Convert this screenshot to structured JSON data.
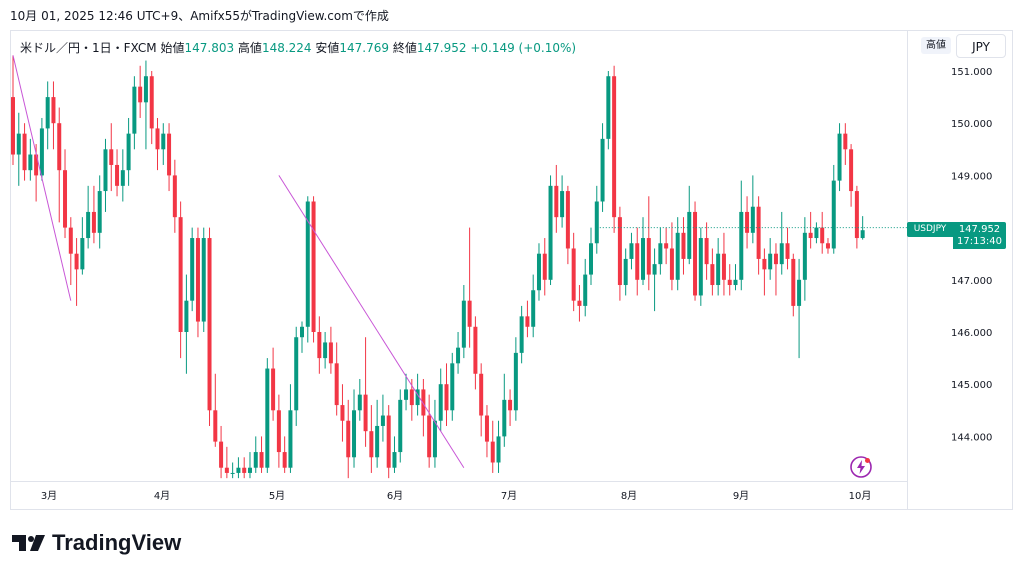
{
  "caption": "10月 01, 2025 12:46 UTC+9、Amifx55がTradingView.comで作成",
  "legend": {
    "symbol": "米ドル／円・1日・FXCM",
    "open_label": "始値",
    "open": "147.803",
    "high_label": "高値",
    "high": "148.224",
    "low_label": "安値",
    "low": "147.769",
    "close_label": "終値",
    "close": "147.952",
    "change": "+0.149 (+0.10%)"
  },
  "buttons": {
    "scale": "高値",
    "currency": "JPY"
  },
  "last_price": {
    "symbol": "USDJPY",
    "price": "147.952",
    "countdown": "17:13:40"
  },
  "brand": "TradingView",
  "colors": {
    "up": "#089981",
    "down": "#f23645",
    "trendline": "#c856d6",
    "accent": "#9c27b0"
  },
  "chart_data": {
    "type": "candlestick",
    "y_ticks": [
      "151.000",
      "150.000",
      "149.000",
      "148.000",
      "147.000",
      "146.000",
      "145.000",
      "144.000"
    ],
    "y_tick_values": [
      151,
      150,
      149,
      148,
      147,
      146,
      145,
      144
    ],
    "x_ticks": [
      "3月",
      "4月",
      "5月",
      "6月",
      "7月",
      "8月",
      "9月",
      "10月"
    ],
    "ylim": [
      143.1,
      151.3
    ],
    "candles": [
      [
        150.5,
        149.4,
        151.3,
        149.2
      ],
      [
        149.4,
        149.8,
        150.2,
        148.8
      ],
      [
        149.8,
        149.1,
        150.0,
        148.9
      ],
      [
        149.1,
        149.4,
        149.7,
        148.9
      ],
      [
        149.4,
        149.0,
        149.6,
        148.5
      ],
      [
        149.0,
        149.9,
        150.1,
        148.9
      ],
      [
        149.9,
        150.5,
        150.8,
        149.5
      ],
      [
        150.5,
        150.0,
        150.8,
        149.5
      ],
      [
        150.0,
        149.1,
        150.3,
        148.1
      ],
      [
        149.1,
        148.0,
        149.5,
        147.8
      ],
      [
        148.0,
        147.5,
        148.2,
        146.9
      ],
      [
        147.5,
        147.2,
        147.8,
        146.5
      ],
      [
        147.2,
        147.8,
        148.2,
        147.1
      ],
      [
        147.8,
        148.3,
        148.8,
        147.6
      ],
      [
        148.3,
        147.9,
        148.8,
        147.7
      ],
      [
        147.9,
        148.7,
        149.0,
        147.6
      ],
      [
        148.7,
        149.5,
        149.7,
        148.3
      ],
      [
        149.5,
        149.2,
        150.0,
        148.7
      ],
      [
        149.2,
        148.8,
        149.5,
        148.6
      ],
      [
        148.8,
        149.1,
        149.5,
        148.5
      ],
      [
        149.1,
        149.8,
        150.1,
        148.8
      ],
      [
        149.8,
        150.7,
        150.9,
        149.5
      ],
      [
        150.7,
        150.4,
        151.1,
        150.1
      ],
      [
        150.4,
        150.9,
        151.2,
        149.5
      ],
      [
        150.9,
        149.9,
        151.0,
        149.6
      ],
      [
        149.9,
        149.5,
        150.1,
        149.1
      ],
      [
        149.5,
        149.8,
        150.0,
        149.2
      ],
      [
        149.8,
        149.0,
        150.0,
        148.7
      ],
      [
        149.0,
        148.2,
        149.3,
        147.9
      ],
      [
        148.2,
        146.0,
        148.5,
        145.5
      ],
      [
        146.0,
        146.6,
        147.1,
        145.2
      ],
      [
        146.6,
        147.8,
        148.0,
        146.4
      ],
      [
        147.8,
        146.2,
        148.0,
        145.9
      ],
      [
        146.2,
        147.8,
        148.0,
        146.0
      ],
      [
        147.8,
        144.5,
        148.0,
        144.2
      ],
      [
        144.5,
        143.9,
        145.2,
        143.8
      ],
      [
        143.9,
        143.4,
        144.2,
        143.2
      ],
      [
        143.4,
        143.3,
        143.8,
        143.2
      ],
      [
        143.3,
        143.3,
        143.5,
        143.2
      ],
      [
        143.3,
        143.4,
        143.6,
        143.2
      ],
      [
        143.4,
        143.3,
        143.6,
        143.2
      ],
      [
        143.3,
        143.4,
        143.7,
        143.2
      ],
      [
        143.4,
        143.7,
        144.0,
        143.3
      ],
      [
        143.7,
        143.4,
        144.0,
        143.3
      ],
      [
        143.4,
        145.3,
        145.5,
        143.3
      ],
      [
        145.3,
        144.5,
        145.7,
        144.3
      ],
      [
        144.5,
        143.7,
        144.8,
        143.4
      ],
      [
        143.7,
        143.4,
        144.0,
        143.3
      ],
      [
        143.4,
        144.5,
        145.0,
        143.3
      ],
      [
        144.5,
        145.9,
        146.1,
        144.2
      ],
      [
        145.9,
        146.1,
        146.2,
        145.6
      ],
      [
        146.1,
        148.5,
        148.6,
        145.8
      ],
      [
        148.5,
        146.0,
        148.6,
        145.8
      ],
      [
        146.0,
        145.5,
        146.3,
        145.2
      ],
      [
        145.5,
        145.8,
        146.0,
        145.3
      ],
      [
        145.8,
        145.4,
        146.1,
        145.2
      ],
      [
        145.4,
        144.6,
        145.8,
        144.4
      ],
      [
        144.6,
        144.3,
        145.0,
        143.9
      ],
      [
        144.3,
        143.6,
        144.7,
        143.2
      ],
      [
        143.6,
        144.5,
        144.9,
        143.4
      ],
      [
        144.5,
        144.8,
        145.1,
        144.3
      ],
      [
        144.8,
        144.1,
        145.9,
        143.8
      ],
      [
        144.1,
        143.6,
        144.6,
        143.3
      ],
      [
        143.6,
        144.2,
        144.7,
        143.4
      ],
      [
        144.2,
        144.4,
        144.8,
        143.9
      ],
      [
        144.4,
        143.4,
        144.6,
        143.2
      ],
      [
        143.4,
        143.7,
        144.0,
        143.3
      ],
      [
        143.7,
        144.7,
        144.9,
        143.5
      ],
      [
        144.7,
        144.9,
        145.2,
        144.5
      ],
      [
        144.9,
        144.6,
        145.1,
        144.3
      ],
      [
        144.6,
        144.9,
        145.2,
        144.4
      ],
      [
        144.9,
        144.4,
        145.1,
        144.0
      ],
      [
        144.4,
        143.6,
        144.8,
        143.4
      ],
      [
        143.6,
        144.3,
        144.7,
        143.4
      ],
      [
        144.3,
        145.0,
        145.3,
        144.1
      ],
      [
        145.0,
        144.5,
        145.4,
        144.2
      ],
      [
        144.5,
        145.4,
        145.6,
        144.3
      ],
      [
        145.4,
        145.7,
        146.0,
        145.2
      ],
      [
        145.7,
        146.6,
        146.9,
        145.5
      ],
      [
        146.6,
        146.1,
        148.0,
        145.7
      ],
      [
        146.1,
        145.2,
        146.3,
        144.9
      ],
      [
        145.2,
        144.4,
        145.4,
        144.0
      ],
      [
        144.4,
        143.9,
        144.6,
        143.6
      ],
      [
        143.9,
        143.5,
        144.3,
        143.3
      ],
      [
        143.5,
        144.0,
        144.3,
        143.3
      ],
      [
        144.0,
        144.7,
        145.2,
        143.8
      ],
      [
        144.7,
        144.5,
        144.9,
        144.2
      ],
      [
        144.5,
        145.6,
        145.9,
        144.3
      ],
      [
        145.6,
        146.3,
        146.5,
        145.4
      ],
      [
        146.3,
        146.1,
        146.6,
        145.9
      ],
      [
        146.1,
        146.8,
        147.1,
        145.9
      ],
      [
        146.8,
        147.5,
        147.7,
        146.6
      ],
      [
        147.5,
        147.0,
        147.8,
        146.7
      ],
      [
        147.0,
        148.8,
        149.0,
        146.9
      ],
      [
        148.8,
        148.2,
        149.2,
        147.9
      ],
      [
        148.2,
        148.7,
        149.0,
        148.0
      ],
      [
        148.7,
        147.6,
        148.8,
        147.3
      ],
      [
        147.6,
        146.6,
        147.9,
        146.4
      ],
      [
        146.6,
        146.5,
        146.9,
        146.2
      ],
      [
        146.5,
        147.1,
        147.4,
        146.3
      ],
      [
        147.1,
        147.7,
        148.0,
        146.9
      ],
      [
        147.7,
        148.5,
        148.8,
        147.5
      ],
      [
        148.5,
        149.7,
        150.0,
        148.3
      ],
      [
        149.7,
        150.9,
        151.0,
        149.5
      ],
      [
        150.9,
        148.2,
        151.1,
        147.9
      ],
      [
        148.2,
        146.9,
        148.4,
        146.6
      ],
      [
        146.9,
        147.4,
        147.6,
        146.7
      ],
      [
        147.4,
        147.7,
        147.9,
        147.2
      ],
      [
        147.7,
        147.0,
        148.0,
        146.7
      ],
      [
        147.0,
        147.8,
        148.2,
        146.9
      ],
      [
        147.8,
        147.1,
        148.6,
        146.8
      ],
      [
        147.1,
        147.3,
        147.6,
        146.4
      ],
      [
        147.3,
        147.7,
        148.0,
        147.1
      ],
      [
        147.7,
        147.6,
        148.0,
        147.3
      ],
      [
        147.6,
        147.0,
        148.1,
        146.8
      ],
      [
        147.0,
        147.9,
        148.2,
        146.8
      ],
      [
        147.9,
        147.4,
        148.2,
        147.1
      ],
      [
        147.4,
        148.3,
        148.8,
        147.3
      ],
      [
        148.3,
        146.7,
        148.5,
        146.6
      ],
      [
        146.7,
        147.8,
        148.0,
        146.5
      ],
      [
        147.8,
        147.3,
        148.1,
        147.0
      ],
      [
        147.3,
        146.9,
        147.6,
        146.7
      ],
      [
        146.9,
        147.5,
        147.8,
        146.7
      ],
      [
        147.5,
        147.0,
        147.9,
        146.7
      ],
      [
        147.0,
        146.9,
        147.3,
        146.7
      ],
      [
        146.9,
        147.0,
        147.3,
        146.8
      ],
      [
        147.0,
        148.3,
        148.9,
        146.8
      ],
      [
        148.3,
        147.9,
        148.6,
        147.6
      ],
      [
        147.9,
        148.4,
        149.0,
        147.7
      ],
      [
        148.4,
        147.4,
        148.6,
        147.1
      ],
      [
        147.4,
        147.2,
        147.6,
        146.7
      ],
      [
        147.2,
        147.5,
        147.8,
        147.0
      ],
      [
        147.5,
        147.3,
        147.7,
        146.7
      ],
      [
        147.3,
        147.7,
        148.3,
        147.1
      ],
      [
        147.7,
        147.4,
        148.0,
        147.2
      ],
      [
        147.4,
        146.5,
        147.5,
        146.3
      ],
      [
        146.5,
        147.0,
        147.4,
        145.5
      ],
      [
        147.0,
        147.9,
        148.2,
        146.6
      ],
      [
        147.9,
        147.8,
        148.3,
        147.6
      ],
      [
        147.8,
        148.0,
        148.1,
        147.7
      ],
      [
        148.0,
        147.7,
        148.3,
        147.5
      ],
      [
        147.7,
        147.6,
        147.8,
        147.5
      ],
      [
        147.6,
        148.9,
        149.2,
        147.5
      ],
      [
        148.9,
        149.8,
        150.0,
        148.7
      ],
      [
        149.8,
        149.5,
        150.0,
        149.2
      ],
      [
        149.5,
        148.7,
        149.6,
        148.4
      ],
      [
        148.7,
        147.8,
        148.8,
        147.6
      ],
      [
        147.8,
        147.95,
        148.22,
        147.77
      ]
    ],
    "trendlines": [
      {
        "from": [
          0,
          151.3
        ],
        "to": [
          10,
          146.6
        ]
      },
      {
        "from": [
          46,
          149.0
        ],
        "to": [
          78,
          143.4
        ]
      },
      {
        "from": [
          101,
          148.0
        ],
        "to": [
          150,
          148.0
        ],
        "style": "dotted"
      }
    ]
  }
}
